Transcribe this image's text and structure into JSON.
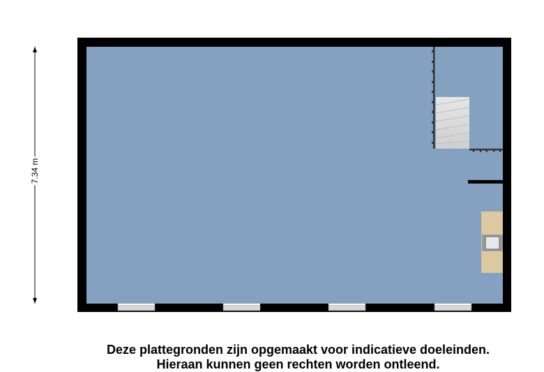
{
  "floorplan": {
    "dimension_vertical": "7.34 m",
    "colors": {
      "floor": "#84a1c1",
      "wall": "#000000",
      "counter": "#dcc9a0",
      "stairs": "#dcdcdc"
    },
    "disclaimer_line1": "Deze plattegronden zijn opgemaakt voor indicatieve doeleinden.",
    "disclaimer_line2": "Hieraan kunnen geen rechten worden ontleend."
  }
}
